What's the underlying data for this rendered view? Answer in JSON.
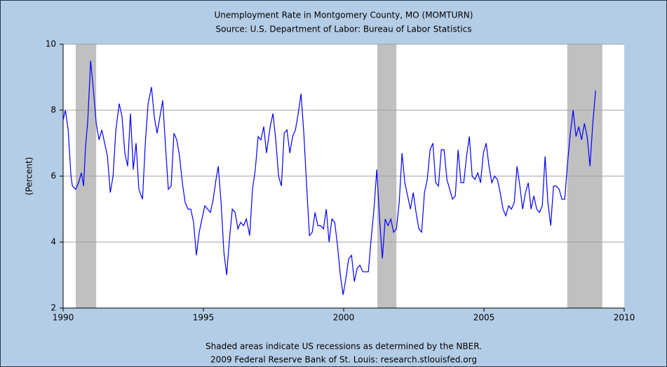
{
  "chart_data": {
    "type": "line",
    "title": "Unemployment Rate in Montgomery County, MO (MOMTURN)",
    "subtitle": "Source: U.S. Department of Labor: Bureau of Labor Statistics",
    "ylabel": "(Percent)",
    "notes": [
      "Shaded areas indicate US recessions as determined by the NBER.",
      "2009 Federal Reserve Bank of St. Louis: research.stlouisfed.org"
    ],
    "xlim": [
      1990,
      2010
    ],
    "xticks": [
      1990,
      1995,
      2000,
      2005,
      2010
    ],
    "ylim": [
      2,
      10
    ],
    "yticks": [
      2,
      4,
      6,
      8,
      10
    ],
    "grid": true,
    "recession_color": "#c0c0c0",
    "recessions": [
      [
        1990.45,
        1991.18
      ],
      [
        2001.2,
        2001.88
      ],
      [
        2007.97,
        2009.22
      ]
    ],
    "series": [
      {
        "name": "MOMTURN",
        "color": "#0000ff",
        "x": [
          1990.0,
          1990.08,
          1990.18,
          1990.28,
          1990.33,
          1990.45,
          1990.55,
          1990.65,
          1990.73,
          1990.8,
          1990.88,
          1990.98,
          1991.08,
          1991.18,
          1991.28,
          1991.38,
          1991.48,
          1991.58,
          1991.68,
          1991.78,
          1991.88,
          1992.0,
          1992.1,
          1992.2,
          1992.3,
          1992.4,
          1992.5,
          1992.6,
          1992.7,
          1992.83,
          1992.93,
          1993.03,
          1993.15,
          1993.25,
          1993.35,
          1993.45,
          1993.55,
          1993.65,
          1993.75,
          1993.85,
          1993.95,
          1994.05,
          1994.15,
          1994.25,
          1994.35,
          1994.45,
          1994.55,
          1994.65,
          1994.75,
          1994.85,
          1994.95,
          1995.05,
          1995.15,
          1995.25,
          1995.35,
          1995.45,
          1995.53,
          1995.63,
          1995.73,
          1995.83,
          1995.93,
          1996.03,
          1996.13,
          1996.23,
          1996.33,
          1996.43,
          1996.53,
          1996.65,
          1996.75,
          1996.85,
          1996.95,
          1997.05,
          1997.15,
          1997.25,
          1997.38,
          1997.48,
          1997.58,
          1997.68,
          1997.78,
          1997.88,
          1997.98,
          1998.08,
          1998.18,
          1998.28,
          1998.38,
          1998.48,
          1998.58,
          1998.68,
          1998.78,
          1998.88,
          1998.98,
          1999.08,
          1999.18,
          1999.28,
          1999.38,
          1999.48,
          1999.58,
          1999.68,
          1999.78,
          1999.88,
          1999.98,
          2000.08,
          2000.18,
          2000.28,
          2000.38,
          2000.48,
          2000.58,
          2000.68,
          2000.78,
          2000.88,
          2000.98,
          2001.08,
          2001.18,
          2001.28,
          2001.38,
          2001.48,
          2001.58,
          2001.68,
          2001.78,
          2001.88,
          2001.98,
          2002.08,
          2002.18,
          2002.28,
          2002.38,
          2002.48,
          2002.58,
          2002.68,
          2002.78,
          2002.88,
          2002.98,
          2003.08,
          2003.18,
          2003.28,
          2003.38,
          2003.48,
          2003.58,
          2003.68,
          2003.78,
          2003.88,
          2003.98,
          2004.08,
          2004.18,
          2004.28,
          2004.38,
          2004.48,
          2004.58,
          2004.68,
          2004.78,
          2004.88,
          2004.98,
          2005.08,
          2005.18,
          2005.28,
          2005.38,
          2005.48,
          2005.58,
          2005.68,
          2005.78,
          2005.88,
          2005.98,
          2006.08,
          2006.18,
          2006.28,
          2006.38,
          2006.48,
          2006.58,
          2006.68,
          2006.78,
          2006.88,
          2006.98,
          2007.08,
          2007.18,
          2007.28,
          2007.38,
          2007.48,
          2007.58,
          2007.68,
          2007.78,
          2007.88,
          2007.98,
          2008.08,
          2008.18,
          2008.28,
          2008.38,
          2008.48,
          2008.58,
          2008.68,
          2008.78,
          2008.88,
          2008.98
        ],
        "values": [
          7.7,
          8.0,
          7.4,
          6.0,
          5.7,
          5.6,
          5.8,
          6.1,
          5.7,
          6.9,
          7.7,
          9.5,
          8.6,
          7.6,
          7.1,
          7.4,
          7.0,
          6.6,
          5.5,
          6.0,
          7.4,
          8.2,
          7.8,
          6.7,
          6.3,
          7.9,
          6.2,
          7.0,
          5.6,
          5.3,
          7.0,
          8.2,
          8.7,
          7.8,
          7.3,
          7.8,
          8.3,
          6.9,
          5.6,
          5.7,
          7.3,
          7.1,
          6.6,
          5.8,
          5.2,
          5.0,
          5.0,
          4.6,
          3.6,
          4.3,
          4.7,
          5.1,
          5.0,
          4.9,
          5.3,
          5.9,
          6.3,
          5.2,
          3.7,
          3.0,
          4.1,
          5.0,
          4.9,
          4.4,
          4.6,
          4.5,
          4.7,
          4.2,
          5.6,
          6.2,
          7.2,
          7.1,
          7.5,
          6.7,
          7.5,
          7.9,
          7.1,
          6.0,
          5.7,
          7.3,
          7.4,
          6.7,
          7.2,
          7.4,
          7.9,
          8.5,
          7.3,
          5.7,
          4.2,
          4.3,
          4.9,
          4.5,
          4.5,
          4.4,
          5.0,
          4.0,
          4.7,
          4.6,
          3.9,
          3.0,
          2.4,
          2.9,
          3.5,
          3.6,
          2.8,
          3.2,
          3.3,
          3.1,
          3.1,
          3.1,
          4.1,
          5.0,
          6.2,
          4.7,
          3.5,
          4.7,
          4.5,
          4.7,
          4.3,
          4.4,
          5.2,
          6.7,
          5.8,
          5.4,
          5.0,
          5.5,
          4.9,
          4.4,
          4.3,
          5.5,
          5.9,
          6.8,
          7.0,
          5.8,
          5.7,
          6.8,
          6.8,
          5.9,
          5.6,
          5.3,
          5.4,
          6.8,
          5.8,
          5.8,
          6.6,
          7.2,
          6.0,
          5.9,
          6.1,
          5.8,
          6.7,
          7.0,
          6.3,
          5.8,
          6.0,
          5.9,
          5.5,
          5.0,
          4.8,
          5.1,
          5.0,
          5.2,
          6.3,
          5.7,
          5.0,
          5.5,
          5.8,
          5.0,
          5.4,
          5.0,
          4.9,
          5.1,
          6.6,
          5.2,
          4.5,
          5.7,
          5.7,
          5.6,
          5.3,
          5.3,
          6.4,
          7.3,
          8.0,
          7.2,
          7.5,
          7.1,
          7.6,
          7.2,
          6.3,
          7.6,
          8.6
        ]
      }
    ]
  }
}
